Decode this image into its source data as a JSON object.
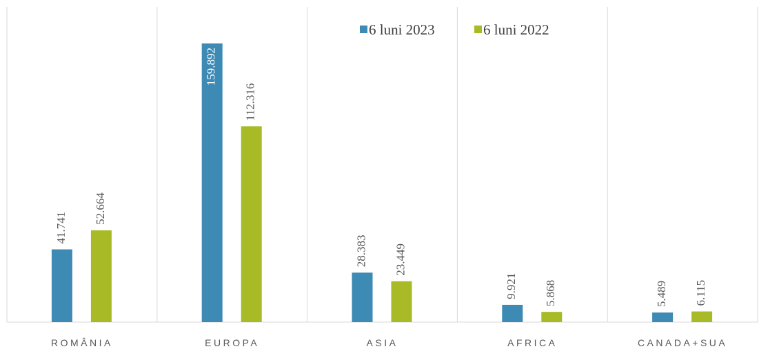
{
  "chart_data": {
    "type": "bar",
    "categories": [
      "ROMÂNIA",
      "EUROPA",
      "ASIA",
      "AFRICA",
      "CANADA+SUA"
    ],
    "series": [
      {
        "name": "6 luni 2023",
        "color": "#3d8ab5",
        "values": [
          41741,
          159892,
          28383,
          9921,
          5489
        ],
        "value_labels": [
          "41.741",
          "159.892",
          "28.383",
          "9.921",
          "5.489"
        ]
      },
      {
        "name": "6 luni 2022",
        "color": "#a8bb26",
        "values": [
          52664,
          112316,
          23449,
          5868,
          6115
        ],
        "value_labels": [
          "52.664",
          "112.316",
          "23.449",
          "5.868",
          "6.115"
        ]
      }
    ],
    "legend": "top"
  }
}
